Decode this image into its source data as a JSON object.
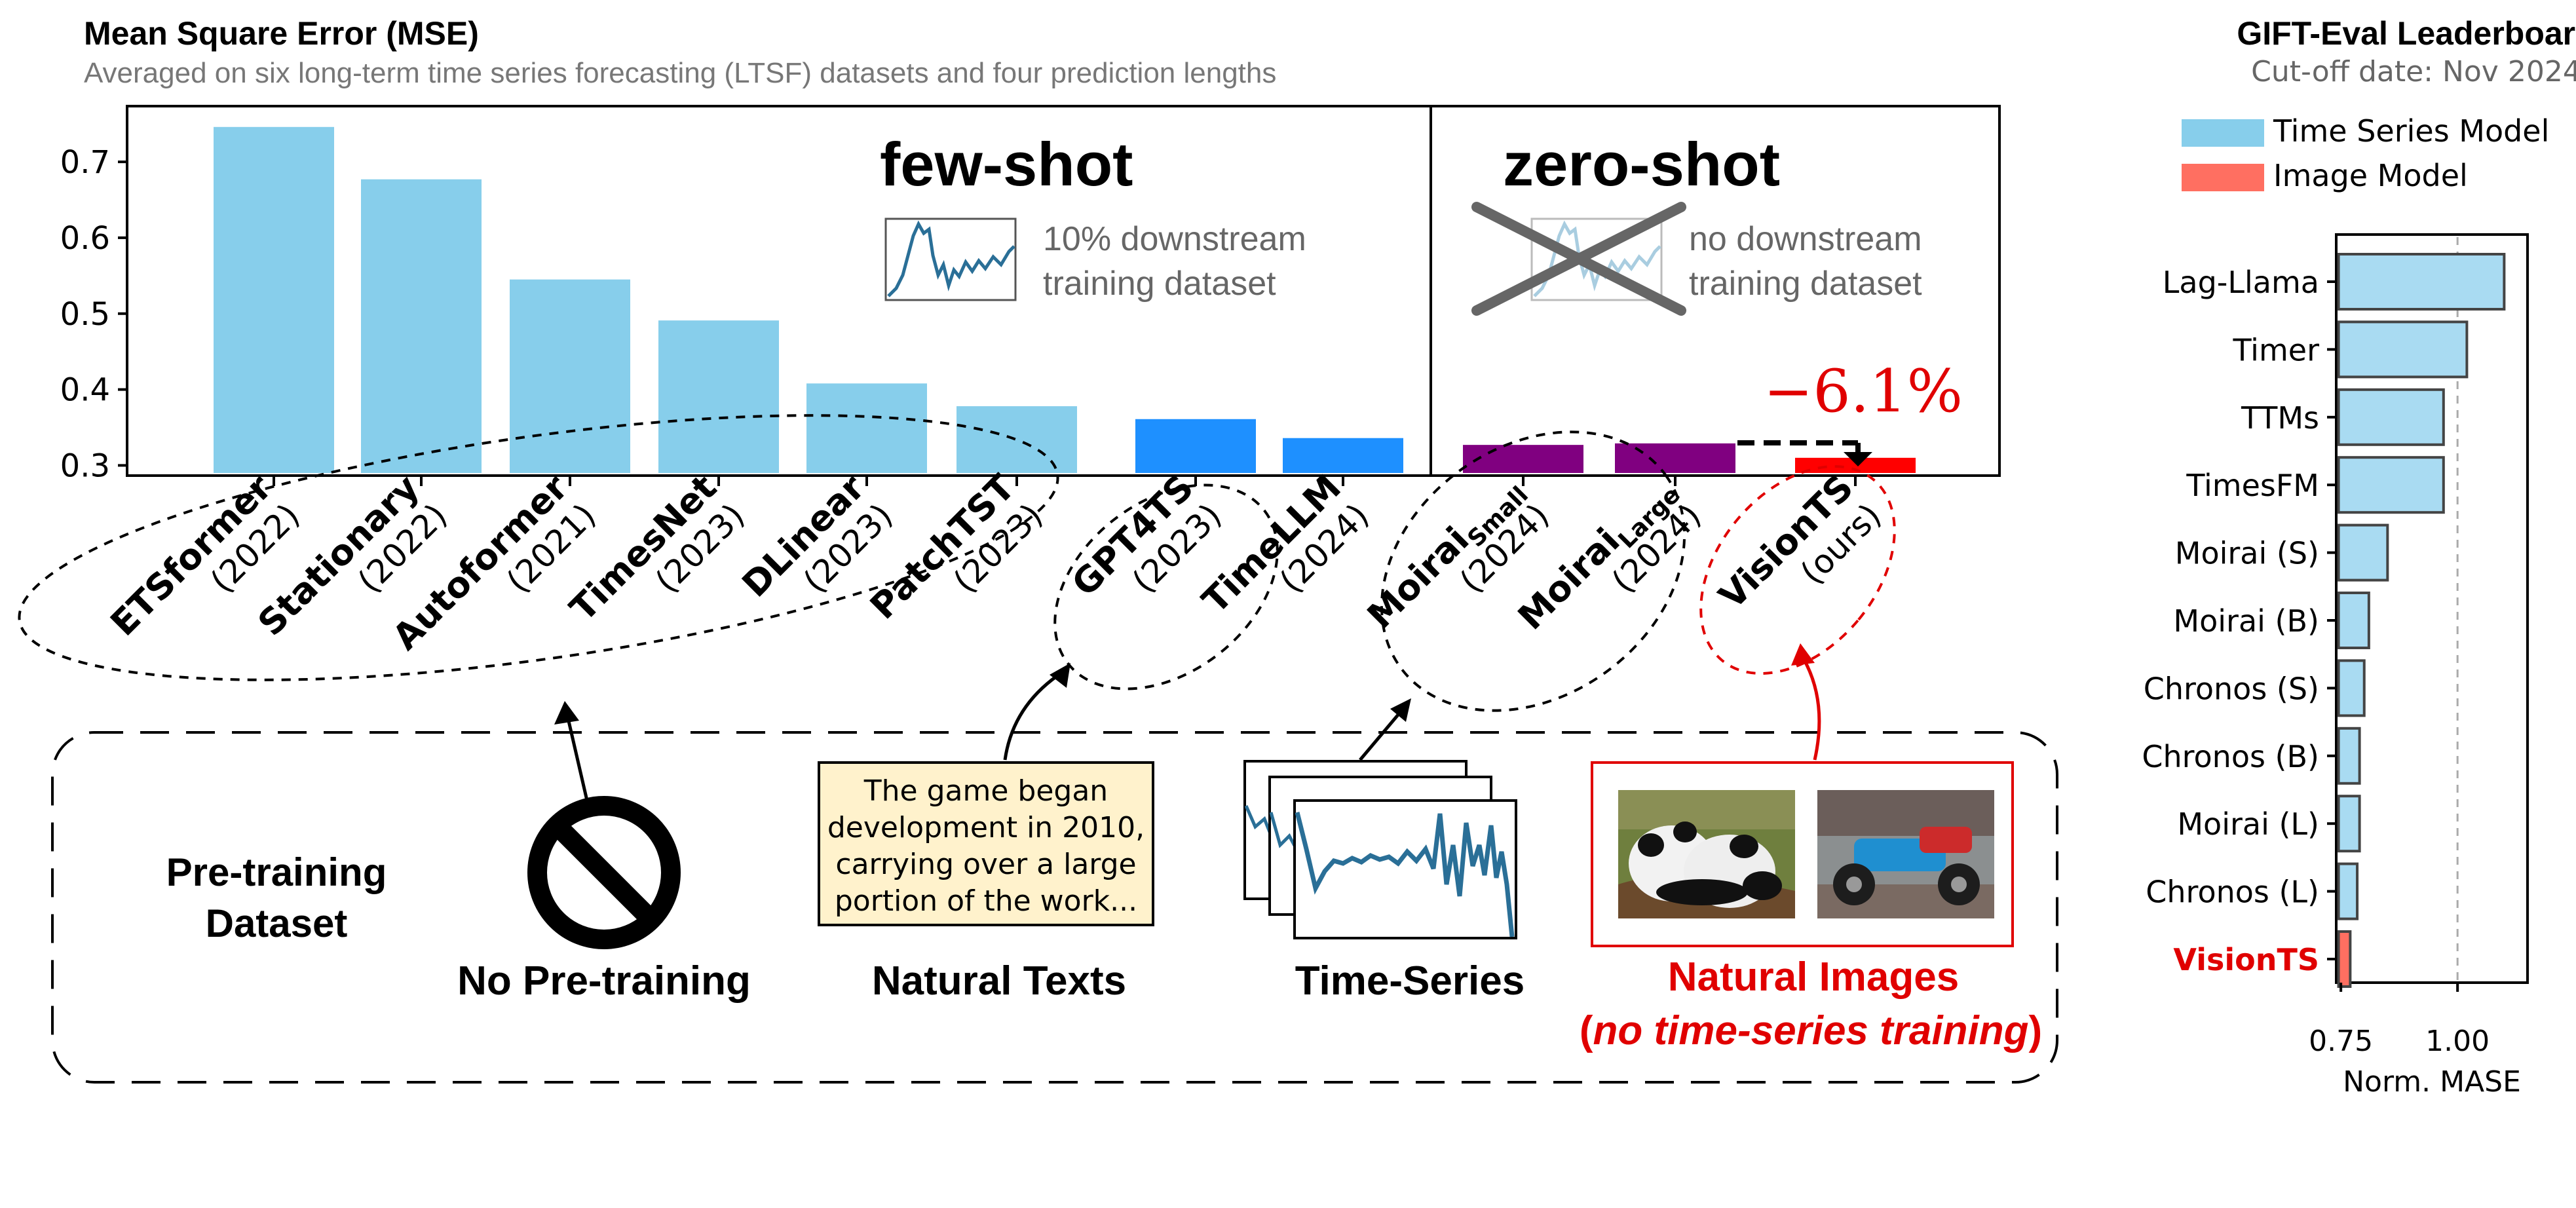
{
  "left_chart": {
    "title": "Mean Square Error (MSE)",
    "subtitle": "Averaged on six long-term time series forecasting (LTSF) datasets and four prediction lengths",
    "few_shot": {
      "label": "few-shot",
      "desc_line1": "10% downstream",
      "desc_line2": "training dataset"
    },
    "zero_shot": {
      "label": "zero-shot",
      "desc_line1": "no downstream",
      "desc_line2": "training dataset"
    },
    "improvement": "−6.1%"
  },
  "chart_data": [
    {
      "type": "bar",
      "title": "Mean Square Error (MSE)",
      "subtitle": "Averaged on six long-term time series forecasting (LTSF) datasets and four prediction lengths",
      "categories": [
        "ETSformer (2022)",
        "Stationary (2022)",
        "Autoformer (2021)",
        "TimesNet (2023)",
        "DLinear (2023)",
        "PatchTST (2023)",
        "GPT4TS (2023)",
        "TimeLLM (2024)",
        "Moirai Small (2024)",
        "Moirai Large (2024)",
        "VisionTS (ours)"
      ],
      "values": [
        0.746,
        0.677,
        0.545,
        0.491,
        0.408,
        0.378,
        0.361,
        0.336,
        0.327,
        0.329,
        0.31
      ],
      "groups": [
        "few-shot",
        "few-shot",
        "few-shot",
        "few-shot",
        "few-shot",
        "few-shot",
        "few-shot",
        "few-shot",
        "zero-shot",
        "zero-shot",
        "zero-shot"
      ],
      "colors": [
        "#87ceeb",
        "#87ceeb",
        "#87ceeb",
        "#87ceeb",
        "#87ceeb",
        "#87ceeb",
        "#1e90ff",
        "#1e90ff",
        "#800080",
        "#800080",
        "#ff0000"
      ],
      "ylim": [
        0.29,
        0.77
      ],
      "yticks": [
        0.3,
        0.4,
        0.5,
        0.6,
        0.7
      ],
      "ytick_labels": [
        "0.3",
        "0.4",
        "0.5",
        "0.6",
        "0.7"
      ],
      "annotation": "−6.1%",
      "grid": false
    },
    {
      "type": "bar",
      "orientation": "horizontal",
      "title": "GIFT-Eval Leaderboard",
      "subtitle": "Cut-off date: Nov 2024",
      "xlabel": "Norm. MASE",
      "categories": [
        "Lag-Llama",
        "Timer",
        "TTMs",
        "TimesFM",
        "Moirai (S)",
        "Moirai (B)",
        "Chronos (S)",
        "Chronos (B)",
        "Moirai (L)",
        "Chronos (L)",
        "VisionTS"
      ],
      "values": [
        1.1,
        1.02,
        0.97,
        0.97,
        0.85,
        0.81,
        0.8,
        0.79,
        0.79,
        0.785,
        0.77
      ],
      "series_colors": [
        "#87ceeb",
        "#87ceeb",
        "#87ceeb",
        "#87ceeb",
        "#87ceeb",
        "#87ceeb",
        "#87ceeb",
        "#87ceeb",
        "#87ceeb",
        "#87ceeb",
        "#ff6f61"
      ],
      "xlim": [
        0.74,
        1.15
      ],
      "xticks": [
        0.75,
        1.0
      ],
      "xtick_labels": [
        "0.75",
        "1.00"
      ],
      "reference_line": 1.0,
      "legend": [
        {
          "name": "Time Series Model",
          "color": "#87ceeb"
        },
        {
          "name": "Image Model",
          "color": "#ff6f61"
        }
      ],
      "legend_position": "top"
    }
  ],
  "labels": [
    {
      "name": "ETSformer",
      "year": "(2022)"
    },
    {
      "name": "Stationary",
      "year": "(2022)"
    },
    {
      "name": "Autoformer",
      "year": "(2021)"
    },
    {
      "name": "TimesNet",
      "year": "(2023)"
    },
    {
      "name": "DLinear",
      "year": "(2023)"
    },
    {
      "name": "PatchTST",
      "year": "(2023)"
    },
    {
      "name": "GPT4TS",
      "year": "(2023)"
    },
    {
      "name": "TimeLLM",
      "year": "(2024)"
    },
    {
      "name": "Moirai",
      "sub": "Small",
      "year": "(2024)"
    },
    {
      "name": "Moirai",
      "sub": "Large",
      "year": "(2024)"
    },
    {
      "name": "VisionTS",
      "year": "(ours)"
    }
  ],
  "pretraining": {
    "title_line1": "Pre-training",
    "title_line2": "Dataset",
    "none_label": "No Pre-training",
    "texts_label": "Natural Texts",
    "text_sample": [
      "The game began",
      "development in 2010,",
      "carrying over a large",
      "portion of the work..."
    ],
    "ts_label": "Time-Series",
    "images_label_line1": "Natural Images",
    "images_label_line2_open": "(",
    "images_label_line2_em": "no time-series training",
    "images_label_line2_close": ")"
  },
  "colors": {
    "light_blue": "#87ceeb",
    "blue": "#1e90ff",
    "purple": "#800080",
    "red": "#ff0000",
    "salmon": "#ff6f61",
    "gift_bar": "#a9dbf2"
  }
}
